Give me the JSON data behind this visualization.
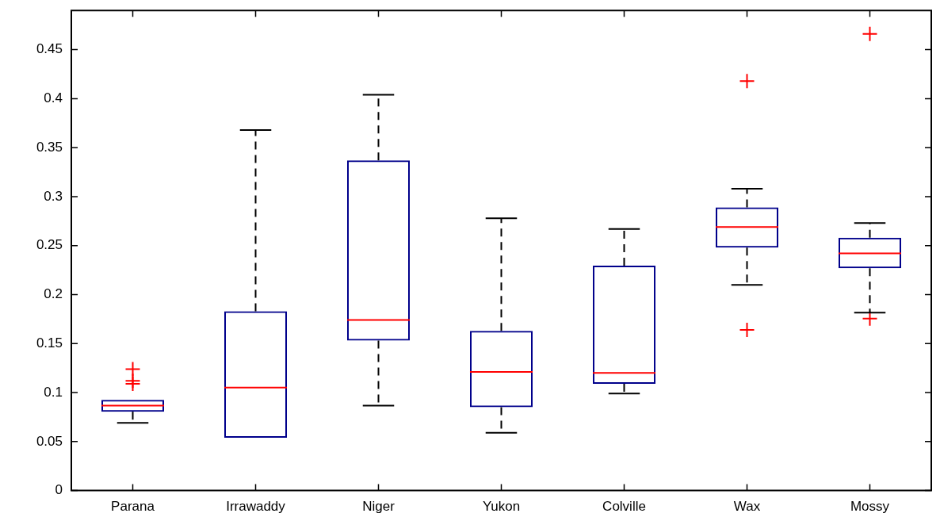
{
  "chart_data": {
    "type": "box",
    "categories": [
      "Parana",
      "Irrawaddy",
      "Niger",
      "Yukon",
      "Colville",
      "Wax",
      "Mossy"
    ],
    "color": "#00008b",
    "marker": "cross",
    "boxes": [
      {
        "low": 0.069,
        "q1": 0.0805,
        "median": 0.0866,
        "q3": 0.0926,
        "high": 0.0926,
        "outliers": [
          0.124,
          0.112,
          0.109
        ]
      },
      {
        "low": 0.054,
        "q1": 0.054,
        "median": 0.105,
        "q3": 0.183,
        "high": 0.368
      },
      {
        "low": 0.0866,
        "q1": 0.153,
        "median": 0.174,
        "q3": 0.337,
        "high": 0.404
      },
      {
        "low": 0.059,
        "q1": 0.085,
        "median": 0.121,
        "q3": 0.163,
        "high": 0.278
      },
      {
        "low": 0.099,
        "q1": 0.109,
        "median": 0.12,
        "q3": 0.2295,
        "high": 0.267
      },
      {
        "low": 0.21,
        "q1": 0.248,
        "median": 0.269,
        "q3": 0.289,
        "high": 0.308,
        "outliers": [
          0.418,
          0.164
        ]
      },
      {
        "low": 0.1815,
        "q1": 0.227,
        "median": 0.242,
        "q3": 0.258,
        "high": 0.273,
        "outliers": [
          0.466,
          0.1755
        ]
      }
    ],
    "ylim": [
      0,
      0.49
    ],
    "yticks": [
      0,
      0.05,
      0.1,
      0.15,
      0.2,
      0.25,
      0.3,
      0.35,
      0.4,
      0.45
    ]
  }
}
